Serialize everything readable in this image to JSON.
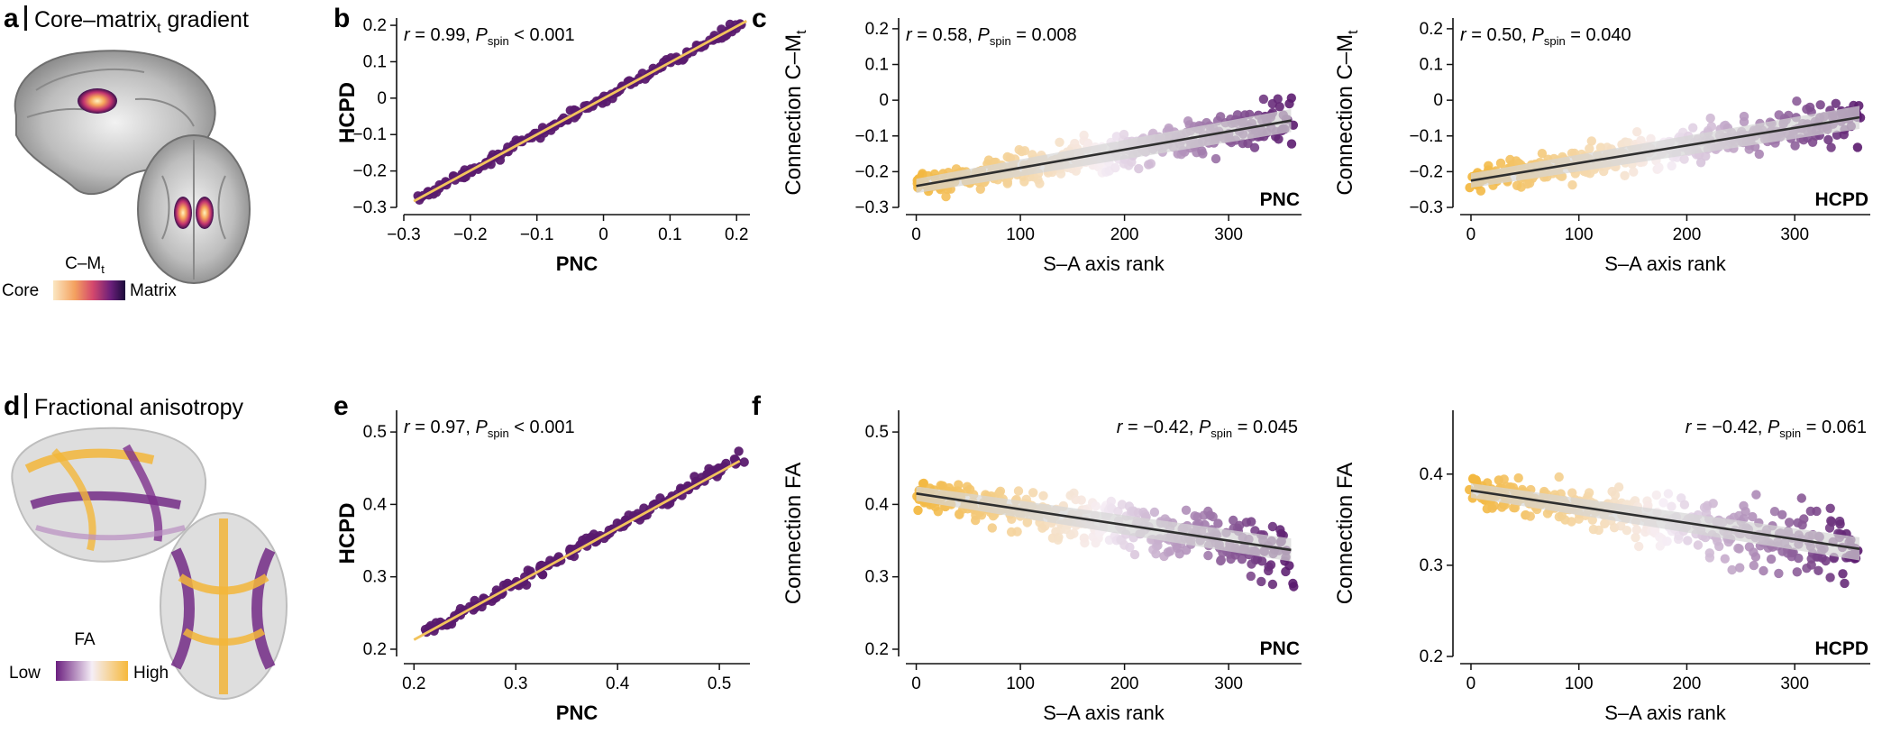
{
  "colors": {
    "gold": "#f3b63a",
    "purple": "#5a1a6e",
    "line_dark": "#2f2f2f",
    "ci_band": "#d6d6d6",
    "fit_gold": "#f2c35c"
  },
  "panels": {
    "a": {
      "letter": "a",
      "title_main": "Core–matrix",
      "title_sub": "t",
      "title_end": " gradient",
      "legend_title": "C–M",
      "legend_title_sub": "t",
      "legend_low": "Core",
      "legend_high": "Matrix",
      "brain_sagittal_icon": "brain-sagittal",
      "brain_axial_icon": "brain-axial"
    },
    "d": {
      "letter": "d",
      "title": "Fractional anisotropy",
      "legend_title": "FA",
      "legend_low": "Low",
      "legend_high": "High",
      "tract_sagittal_icon": "tractography-sagittal",
      "tract_axial_icon": "tractography-axial"
    },
    "b": {
      "letter": "b"
    },
    "c": {
      "letter": "c"
    },
    "e": {
      "letter": "e"
    },
    "f": {
      "letter": "f"
    }
  },
  "chart_data": [
    {
      "id": "b",
      "type": "scatter",
      "xlabel": "PNC",
      "ylabel": "HCPD",
      "xlim": [
        -0.3,
        0.22
      ],
      "ylim": [
        -0.3,
        0.22
      ],
      "xticks": [
        -0.3,
        -0.2,
        -0.1,
        0,
        0.1,
        0.2
      ],
      "xtick_labels": [
        "−0.3",
        "−0.2",
        "−0.1",
        "0",
        "0.1",
        "0.2"
      ],
      "yticks": [
        -0.3,
        -0.2,
        -0.1,
        0,
        0.1,
        0.2
      ],
      "ytick_labels": [
        "−0.3",
        "−0.2",
        "−0.1",
        "0",
        "0.1",
        "0.2"
      ],
      "stat_r": "r = 0.99, ",
      "stat_p_sub": "spin",
      "stat_p_val": " < 0.001",
      "stat_pos": "top-left",
      "fit": {
        "x": [
          -0.285,
          0.215
        ],
        "y": [
          -0.283,
          0.212
        ]
      },
      "points": {
        "n": 160,
        "color_mode": "uniform-purple",
        "x_range": [
          -0.28,
          0.21
        ],
        "slope": 0.99,
        "intercept": -0.001,
        "noise": 0.018
      }
    },
    {
      "id": "c1",
      "type": "scatter",
      "xlabel": "S–A axis rank",
      "ylabel": "Connection  C–M",
      "ylabel_sub": "t",
      "xlim": [
        -10,
        370
      ],
      "ylim": [
        -0.3,
        0.23
      ],
      "xticks": [
        0,
        100,
        200,
        300
      ],
      "xtick_labels": [
        "0",
        "100",
        "200",
        "300"
      ],
      "yticks": [
        -0.3,
        -0.2,
        -0.1,
        0,
        0.1,
        0.2
      ],
      "ytick_labels": [
        "−0.3",
        "−0.2",
        "−0.1",
        "0",
        "0.1",
        "0.2"
      ],
      "stat_r": "r = 0.58, ",
      "stat_p_sub": "spin",
      "stat_p_val": " = 0.008",
      "stat_pos": "top-left",
      "dataset_label": "PNC",
      "fit": {
        "x": [
          0,
          360
        ],
        "y": [
          -0.24,
          -0.057
        ]
      },
      "points": {
        "n": 360,
        "color_mode": "rank-gradient",
        "x_range": [
          0,
          360
        ],
        "slope": 0.00051,
        "intercept": -0.24,
        "noise": 0.065
      }
    },
    {
      "id": "c2",
      "type": "scatter",
      "xlabel": "S–A axis rank",
      "ylabel": "Connection  C–M",
      "ylabel_sub": "t",
      "xlim": [
        -10,
        370
      ],
      "ylim": [
        -0.3,
        0.23
      ],
      "xticks": [
        0,
        100,
        200,
        300
      ],
      "xtick_labels": [
        "0",
        "100",
        "200",
        "300"
      ],
      "yticks": [
        -0.3,
        -0.2,
        -0.1,
        0,
        0.1,
        0.2
      ],
      "ytick_labels": [
        "−0.3",
        "−0.2",
        "−0.1",
        "0",
        "0.1",
        "0.2"
      ],
      "stat_r": "r = 0.50, ",
      "stat_p_sub": "spin",
      "stat_p_val": " = 0.040",
      "stat_pos": "top-left",
      "dataset_label": "HCPD",
      "fit": {
        "x": [
          0,
          360
        ],
        "y": [
          -0.225,
          -0.048
        ]
      },
      "points": {
        "n": 360,
        "color_mode": "rank-gradient",
        "x_range": [
          0,
          360
        ],
        "slope": 0.00049,
        "intercept": -0.225,
        "noise": 0.07
      }
    },
    {
      "id": "e",
      "type": "scatter",
      "xlabel": "PNC",
      "ylabel": "HCPD",
      "xlim": [
        0.19,
        0.53
      ],
      "ylim": [
        0.19,
        0.53
      ],
      "xticks": [
        0.2,
        0.3,
        0.4,
        0.5
      ],
      "xtick_labels": [
        "0.2",
        "0.3",
        "0.4",
        "0.5"
      ],
      "yticks": [
        0.2,
        0.3,
        0.4,
        0.5
      ],
      "ytick_labels": [
        "0.2",
        "0.3",
        "0.4",
        "0.5"
      ],
      "stat_r": "r = 0.97, ",
      "stat_p_sub": "spin",
      "stat_p_val": " < 0.001",
      "stat_pos": "top-left",
      "fit": {
        "x": [
          0.2,
          0.52
        ],
        "y": [
          0.213,
          0.46
        ]
      },
      "points": {
        "n": 170,
        "color_mode": "uniform-purple",
        "x_range": [
          0.21,
          0.52
        ],
        "slope": 0.78,
        "intercept": 0.057,
        "noise": 0.013
      }
    },
    {
      "id": "f1",
      "type": "scatter",
      "xlabel": "S–A axis rank",
      "ylabel": "Connection  FA",
      "xlim": [
        -10,
        370
      ],
      "ylim": [
        0.19,
        0.53
      ],
      "xticks": [
        0,
        100,
        200,
        300
      ],
      "xtick_labels": [
        "0",
        "100",
        "200",
        "300"
      ],
      "yticks": [
        0.2,
        0.3,
        0.4,
        0.5
      ],
      "ytick_labels": [
        "0.2",
        "0.3",
        "0.4",
        "0.5"
      ],
      "stat_r": "r = −0.42, ",
      "stat_p_sub": "spin",
      "stat_p_val": " = 0.045",
      "stat_pos": "top-right",
      "dataset_label": "PNC",
      "fit": {
        "x": [
          0,
          360
        ],
        "y": [
          0.415,
          0.337
        ]
      },
      "points": {
        "n": 360,
        "color_mode": "rank-gradient",
        "x_range": [
          0,
          360
        ],
        "slope": -0.00022,
        "intercept": 0.415,
        "noise": 0.045
      }
    },
    {
      "id": "f2",
      "type": "scatter",
      "xlabel": "S–A axis rank",
      "ylabel": "Connection  FA",
      "xlim": [
        -10,
        370
      ],
      "ylim": [
        0.2,
        0.47
      ],
      "xticks": [
        0,
        100,
        200,
        300
      ],
      "xtick_labels": [
        "0",
        "100",
        "200",
        "300"
      ],
      "yticks": [
        0.2,
        0.3,
        0.4
      ],
      "ytick_labels": [
        "0.2",
        "0.3",
        "0.4"
      ],
      "stat_r": "r = −0.42, ",
      "stat_p_sub": "spin",
      "stat_p_val": " = 0.061",
      "stat_pos": "top-right",
      "dataset_label": "HCPD",
      "fit": {
        "x": [
          0,
          360
        ],
        "y": [
          0.382,
          0.318
        ]
      },
      "points": {
        "n": 360,
        "color_mode": "rank-gradient",
        "x_range": [
          0,
          360
        ],
        "slope": -0.00018,
        "intercept": 0.382,
        "noise": 0.04
      }
    }
  ]
}
